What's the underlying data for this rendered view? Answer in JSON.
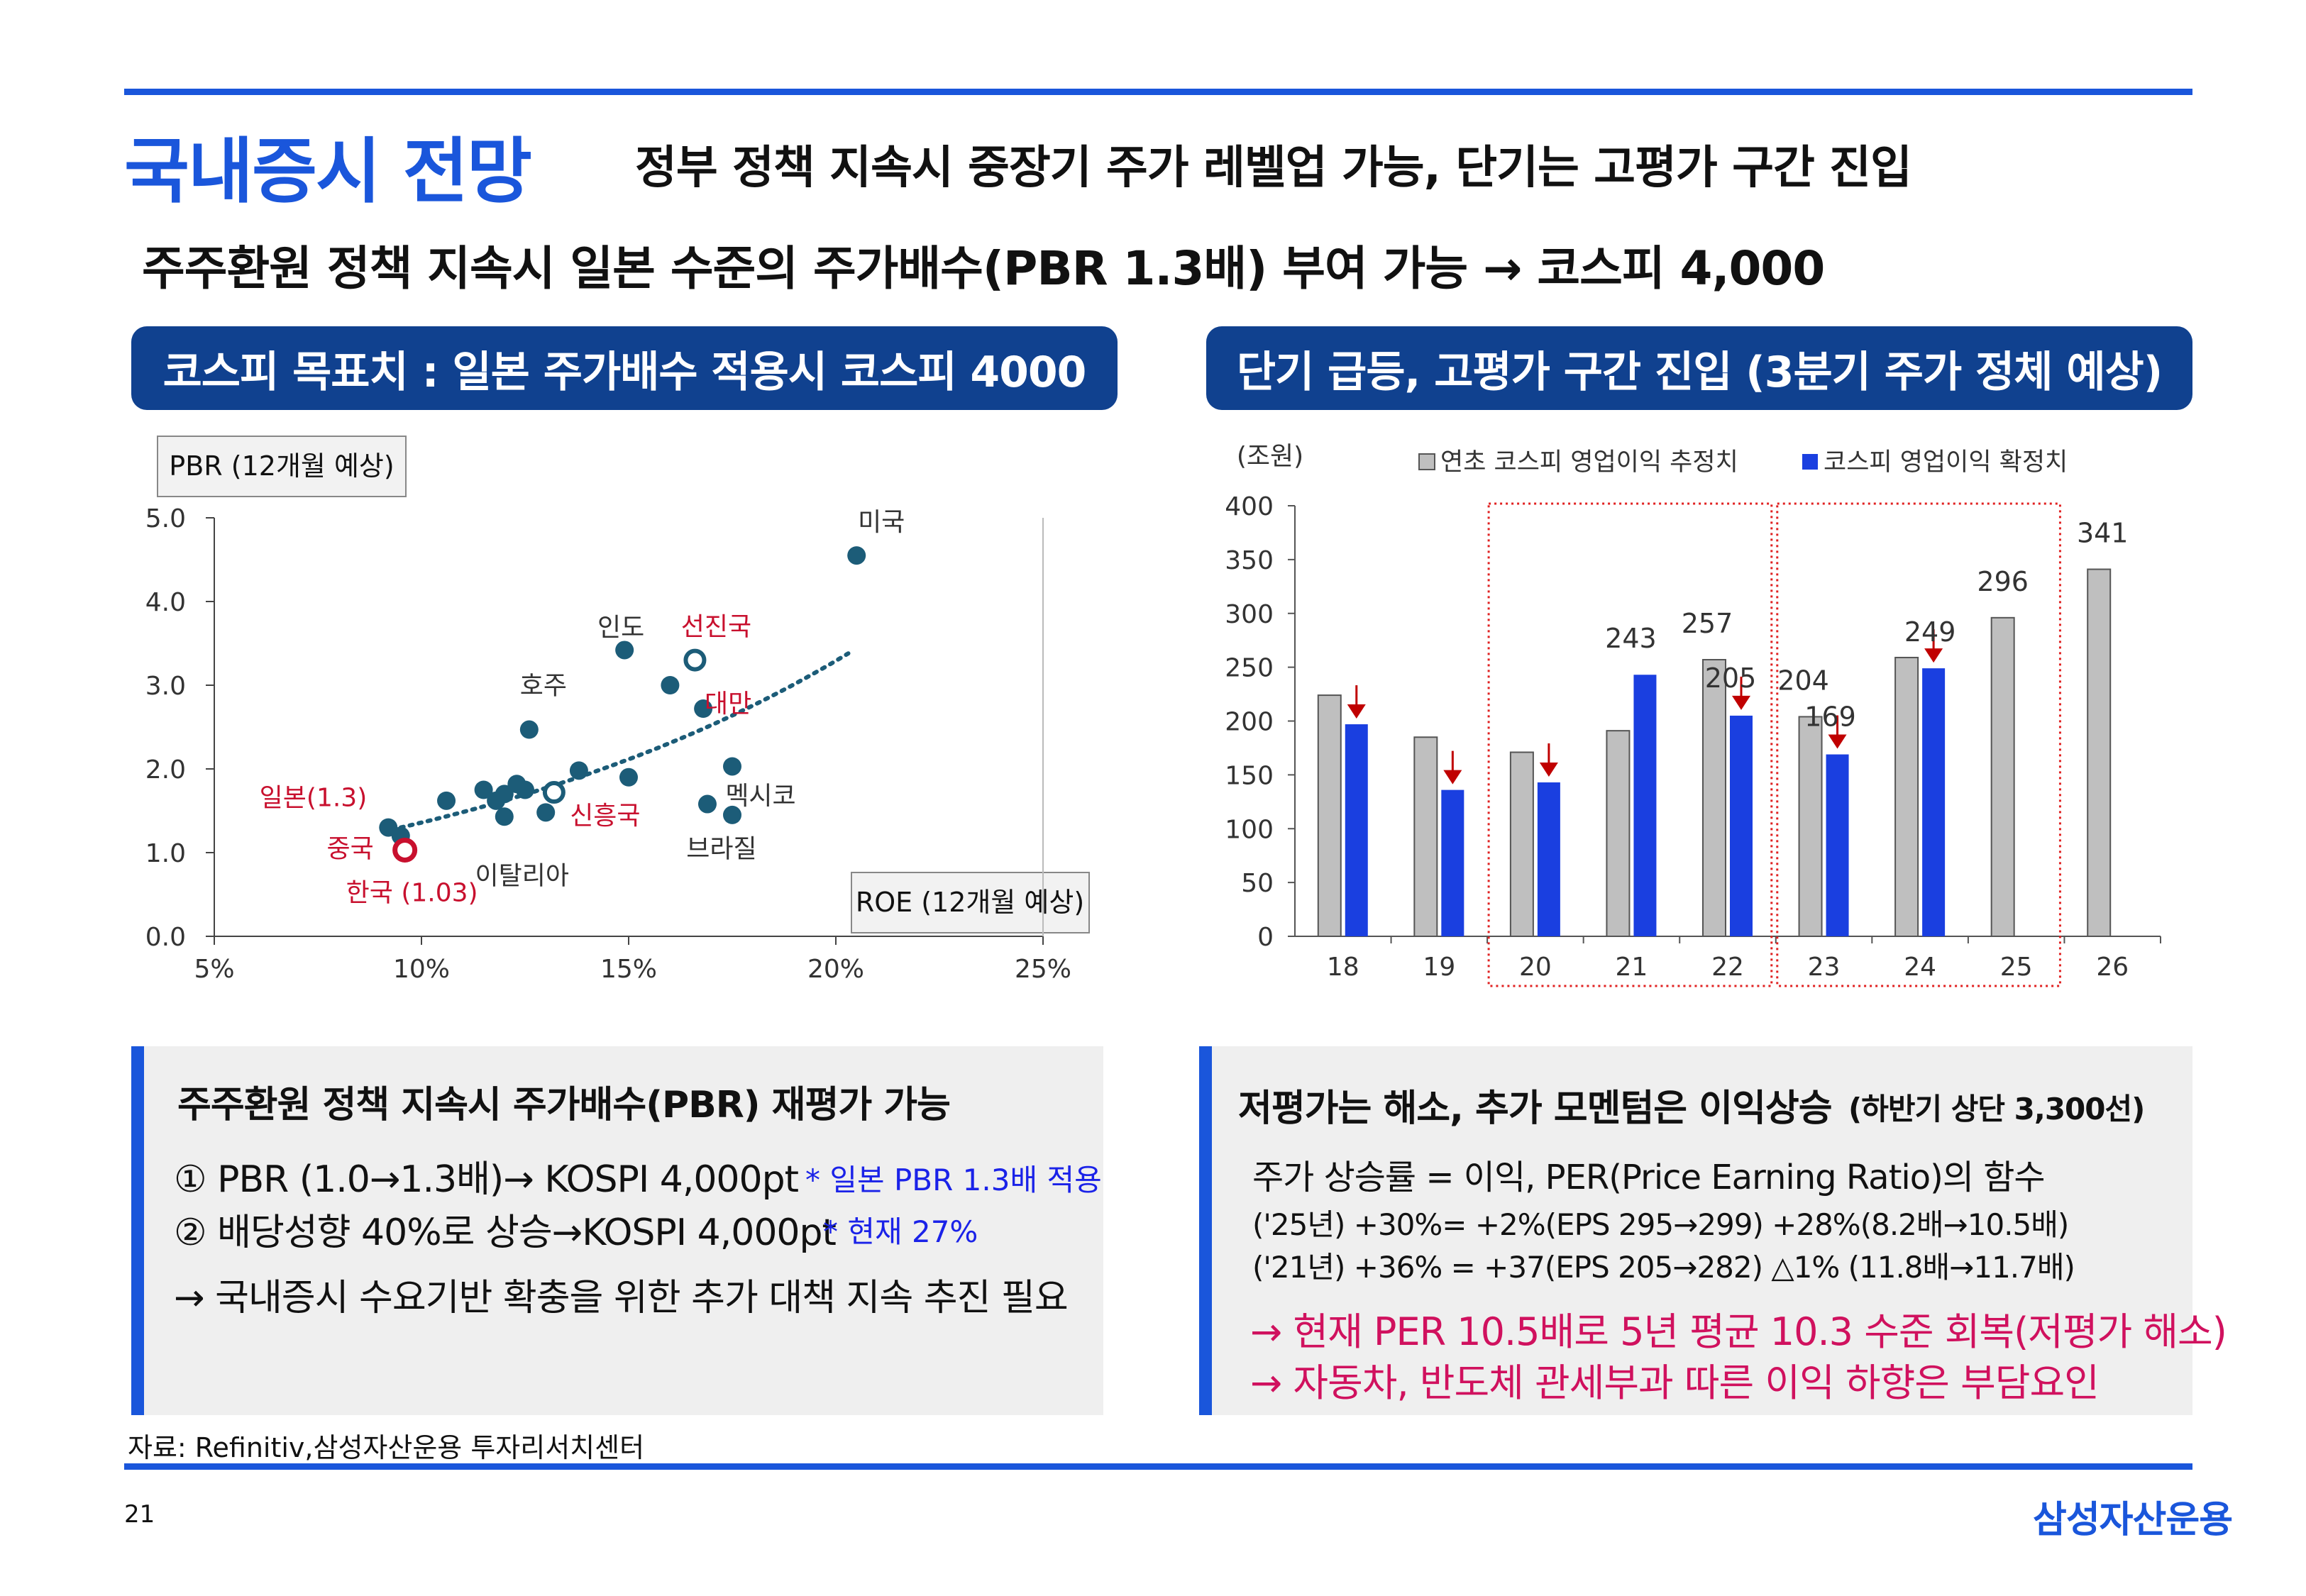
{
  "header": {
    "title": "국내증시 전망",
    "subtitle": "정부 정책 지속시 중장기 주가 레벨업 가능, 단기는 고평가 구간 진입",
    "headline": "주주환원 정책 지속시  일본 수준의 주가배수(PBR 1.3배) 부여 가능 → 코스피 4,000"
  },
  "left_panel": {
    "pill": "코스피 목표치 : 일본 주가배수 적용시 코스피 4000"
  },
  "right_panel": {
    "pill": "단기 급등, 고평가 구간 진입 (3분기 주가 정체 예상)"
  },
  "chart_data": [
    {
      "type": "scatter",
      "ylabel": "PBR (12개월 예상)",
      "xlabel": "ROE (12개월 예상)",
      "xlim": [
        5,
        25
      ],
      "ylim": [
        0,
        5
      ],
      "x_ticks": [
        "5%",
        "10%",
        "15%",
        "20%",
        "25%"
      ],
      "y_ticks": [
        "0.0",
        "1.0",
        "2.0",
        "3.0",
        "4.0",
        "5.0"
      ],
      "points": [
        {
          "label": "미국",
          "x": 20.5,
          "y": 4.55,
          "kind": "country"
        },
        {
          "label": "인도",
          "x": 14.9,
          "y": 3.42,
          "kind": "country"
        },
        {
          "label": "",
          "x": 16.0,
          "y": 3.0,
          "kind": "country"
        },
        {
          "label": "대만",
          "x": 16.8,
          "y": 2.72,
          "kind": "country"
        },
        {
          "label": "호주",
          "x": 12.6,
          "y": 2.47,
          "kind": "country"
        },
        {
          "label": "",
          "x": 13.8,
          "y": 1.98,
          "kind": "country"
        },
        {
          "label": "",
          "x": 15.0,
          "y": 1.9,
          "kind": "country"
        },
        {
          "label": "",
          "x": 17.5,
          "y": 2.03,
          "kind": "country"
        },
        {
          "label": "",
          "x": 10.6,
          "y": 1.62,
          "kind": "country"
        },
        {
          "label": "",
          "x": 11.5,
          "y": 1.75,
          "kind": "country"
        },
        {
          "label": "",
          "x": 11.8,
          "y": 1.62,
          "kind": "country"
        },
        {
          "label": "",
          "x": 12.0,
          "y": 1.7,
          "kind": "country"
        },
        {
          "label": "",
          "x": 12.3,
          "y": 1.82,
          "kind": "country"
        },
        {
          "label": "",
          "x": 12.5,
          "y": 1.75,
          "kind": "country"
        },
        {
          "label": "이탈리아",
          "x": 12.0,
          "y": 1.43,
          "kind": "country"
        },
        {
          "label": "",
          "x": 13.0,
          "y": 1.48,
          "kind": "country"
        },
        {
          "label": "브라질",
          "x": 16.9,
          "y": 1.58,
          "kind": "country"
        },
        {
          "label": "멕시코",
          "x": 17.5,
          "y": 1.45,
          "kind": "country"
        },
        {
          "label": "일본(1.3)",
          "x": 9.2,
          "y": 1.3,
          "kind": "country"
        },
        {
          "label": "중국",
          "x": 9.5,
          "y": 1.2,
          "kind": "country"
        },
        {
          "label": "선진국",
          "x": 16.6,
          "y": 3.3,
          "kind": "aggregate"
        },
        {
          "label": "신흥국",
          "x": 13.2,
          "y": 1.72,
          "kind": "aggregate"
        },
        {
          "label": "한국 (1.03)",
          "x": 9.6,
          "y": 1.03,
          "kind": "korea"
        }
      ],
      "trendline": {
        "type": "exponential",
        "from": [
          9.5,
          1.3
        ],
        "to": [
          20.3,
          3.38
        ]
      }
    },
    {
      "type": "bar",
      "unit_label": "(조원)",
      "categories": [
        "18",
        "19",
        "20",
        "21",
        "22",
        "23",
        "24",
        "25",
        "26"
      ],
      "ylim": [
        0,
        400
      ],
      "y_ticks": [
        "0",
        "50",
        "100",
        "150",
        "200",
        "250",
        "300",
        "350",
        "400"
      ],
      "series": [
        {
          "name": "연초 코스피 영업이익 추정치",
          "color": "#bfbfbf",
          "values": [
            224,
            185,
            171,
            191,
            257,
            204,
            259,
            296,
            341
          ]
        },
        {
          "name": "코스피 영업이익 확정치",
          "color": "#1a3fe0",
          "values": [
            197,
            136,
            143,
            243,
            205,
            169,
            249,
            null,
            null
          ]
        }
      ],
      "data_labels": [
        {
          "category": "21",
          "text": "243"
        },
        {
          "category": "22",
          "text": "257"
        },
        {
          "category": "22",
          "text": "205"
        },
        {
          "category": "23",
          "text": "204"
        },
        {
          "category": "23",
          "text": "169"
        },
        {
          "category": "24",
          "text": "249"
        },
        {
          "category": "25",
          "text": "296"
        },
        {
          "category": "26",
          "text": "341"
        }
      ],
      "highlight_groups": [
        [
          "20",
          "21",
          "22"
        ],
        [
          "23",
          "24",
          "25"
        ]
      ]
    }
  ],
  "bottom_left": {
    "heading": "주주환원 정책 지속시 주가배수(PBR) 재평가 가능",
    "line1": "① PBR (1.0→1.3배)→ KOSPI 4,000pt",
    "line1_note": "* 일본 PBR 1.3배 적용",
    "line2": "② 배당성향 40%로 상승→KOSPI 4,000pt",
    "line2_note": "* 현재 27%",
    "line3": "→ 국내증시 수요기반 확충을 위한 추가 대책 지속 추진 필요"
  },
  "bottom_right": {
    "heading": "저평가는 해소, 추가 모멘텀은 이익상승",
    "heading_note": "(하반기 상단 3,300선)",
    "line1": "주가 상승률 = 이익, PER(Price Earning Ratio)의 함수",
    "line2": "('25년) +30%= +2%(EPS 295→299)  +28%(8.2배→10.5배)",
    "line3": "('21년) +36% = +37(EPS 205→282)  △1% (11.8배→11.7배)",
    "line4": "→ 현재 PER 10.5배로 5년 평균 10.3 수준 회복(저평가 해소)",
    "line5": "→ 자동차, 반도체 관세부과 따른 이익 하향은 부담요인"
  },
  "footer": {
    "source": "자료: Refinitiv,삼성자산운용 투자리서치센터",
    "page_number": "21",
    "brand": "삼성자산운용"
  },
  "colors": {
    "accent_blue": "#1a56db",
    "pill_navy": "#10418f",
    "scatter_teal": "#1c5c78",
    "korea_red": "#c8102e",
    "down_arrow_red": "#c00000",
    "highlight_red": "#e02020"
  }
}
